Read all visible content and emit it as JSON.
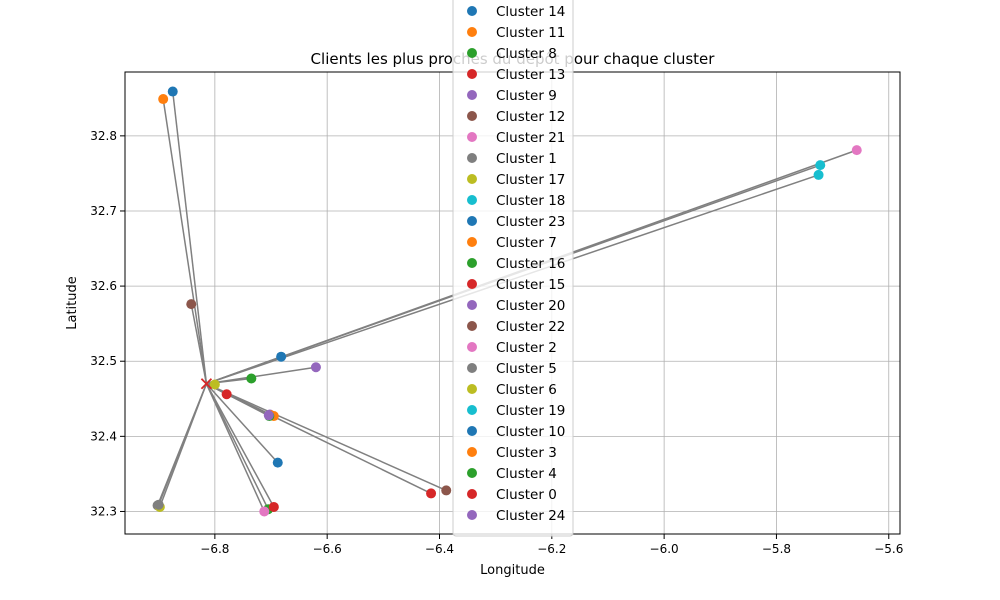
{
  "chart_data": {
    "type": "scatter",
    "title": "Clients les plus proches du dépôt pour chaque cluster",
    "xlabel": "Longitude",
    "ylabel": "Latitude",
    "xlim": [
      -6.96,
      -5.58
    ],
    "ylim": [
      32.27,
      32.885
    ],
    "xticks": [
      -6.8,
      -6.6,
      -6.4,
      -6.2,
      -6.0,
      -5.8,
      -5.6
    ],
    "xtick_labels": [
      "−6.8",
      "−6.6",
      "−6.4",
      "−6.2",
      "−6.0",
      "−5.8",
      "−5.6"
    ],
    "yticks": [
      32.3,
      32.4,
      32.5,
      32.6,
      32.7,
      32.8
    ],
    "ytick_labels": [
      "32.3",
      "32.4",
      "32.5",
      "32.6",
      "32.7",
      "32.8"
    ],
    "grid": true,
    "legend_position": "top-center",
    "depot": {
      "x": -6.815,
      "y": 32.47,
      "color": "#d62728",
      "marker": "x"
    },
    "line_color": "#808080",
    "series": [
      {
        "name": "Cluster 14",
        "color": "#1f77b4",
        "x": -6.875,
        "y": 32.859
      },
      {
        "name": "Cluster 11",
        "color": "#ff7f0e",
        "x": -6.892,
        "y": 32.849
      },
      {
        "name": "Cluster 8",
        "color": "#2ca02c",
        "x": -6.705,
        "y": 32.303
      },
      {
        "name": "Cluster 13",
        "color": "#d62728",
        "x": -6.415,
        "y": 32.324
      },
      {
        "name": "Cluster 9",
        "color": "#9467bd",
        "x": -6.62,
        "y": 32.492
      },
      {
        "name": "Cluster 12",
        "color": "#8c564b",
        "x": -6.842,
        "y": 32.576
      },
      {
        "name": "Cluster 21",
        "color": "#e377c2",
        "x": -5.657,
        "y": 32.781
      },
      {
        "name": "Cluster 1",
        "color": "#7f7f7f",
        "x": -6.902,
        "y": 32.308
      },
      {
        "name": "Cluster 17",
        "color": "#bcbd22",
        "x": -6.898,
        "y": 32.306
      },
      {
        "name": "Cluster 18",
        "color": "#17becf",
        "x": -5.722,
        "y": 32.761
      },
      {
        "name": "Cluster 23",
        "color": "#1f77b4",
        "x": -6.682,
        "y": 32.506
      },
      {
        "name": "Cluster 7",
        "color": "#ff7f0e",
        "x": -6.695,
        "y": 32.427
      },
      {
        "name": "Cluster 16",
        "color": "#2ca02c",
        "x": -6.735,
        "y": 32.477
      },
      {
        "name": "Cluster 15",
        "color": "#d62728",
        "x": -6.695,
        "y": 32.306
      },
      {
        "name": "Cluster 20",
        "color": "#9467bd",
        "x": -6.702,
        "y": 32.429
      },
      {
        "name": "Cluster 22",
        "color": "#8c564b",
        "x": -6.388,
        "y": 32.328
      },
      {
        "name": "Cluster 2",
        "color": "#e377c2",
        "x": -6.712,
        "y": 32.3
      },
      {
        "name": "Cluster 5",
        "color": "#7f7f7f",
        "x": -6.9,
        "y": 32.309
      },
      {
        "name": "Cluster 6",
        "color": "#bcbd22",
        "x": -6.8,
        "y": 32.469
      },
      {
        "name": "Cluster 19",
        "color": "#17becf",
        "x": -5.725,
        "y": 32.748
      },
      {
        "name": "Cluster 10",
        "color": "#1f77b4",
        "x": -6.688,
        "y": 32.365
      },
      {
        "name": "Cluster 3",
        "color": "#ff7f0e",
        "x": -6.7,
        "y": 32.428
      },
      {
        "name": "Cluster 4",
        "color": "#2ca02c",
        "x": -6.703,
        "y": 32.427
      },
      {
        "name": "Cluster 0",
        "color": "#d62728",
        "x": -6.779,
        "y": 32.456
      },
      {
        "name": "Cluster 24",
        "color": "#9467bd",
        "x": -6.704,
        "y": 32.428
      }
    ]
  }
}
